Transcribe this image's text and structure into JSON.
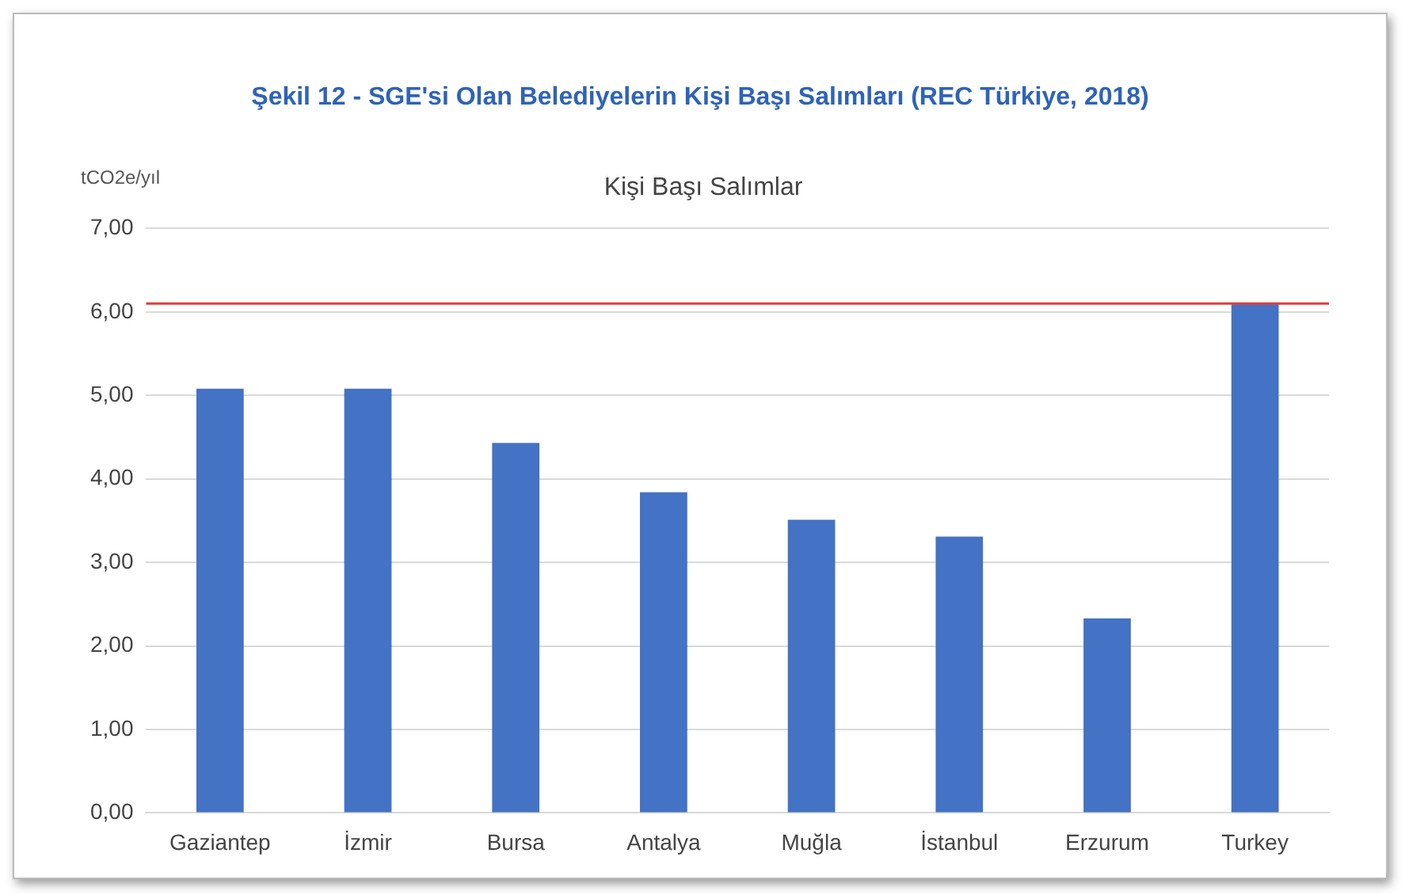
{
  "chart_data": {
    "type": "bar",
    "title": "Şekil 12 - SGE'si Olan Belediyelerin Kişi Başı Salımları (REC Türkiye, 2018)",
    "subtitle": "Kişi Başı Salımlar",
    "ylabel": "tCO2e/yıl",
    "categories": [
      "Gaziantep",
      "İzmir",
      "Bursa",
      "Antalya",
      "Muğla",
      "İstanbul",
      "Erzurum",
      "Turkey"
    ],
    "values": [
      5.08,
      5.08,
      4.43,
      3.84,
      3.51,
      3.31,
      2.33,
      6.1
    ],
    "color": "#4472c4",
    "ylim": [
      0,
      7
    ],
    "yticks": [
      {
        "value": 0,
        "label": "0,00"
      },
      {
        "value": 1,
        "label": "1,00"
      },
      {
        "value": 2,
        "label": "2,00"
      },
      {
        "value": 3,
        "label": "3,00"
      },
      {
        "value": 4,
        "label": "4,00"
      },
      {
        "value": 5,
        "label": "5,00"
      },
      {
        "value": 6,
        "label": "6,00"
      },
      {
        "value": 7,
        "label": "7,00"
      }
    ],
    "ref_lines": [
      {
        "axis": "y",
        "value": 6.1,
        "label": null,
        "color": "#e03c3c"
      }
    ],
    "grid": "y",
    "legend": false
  }
}
